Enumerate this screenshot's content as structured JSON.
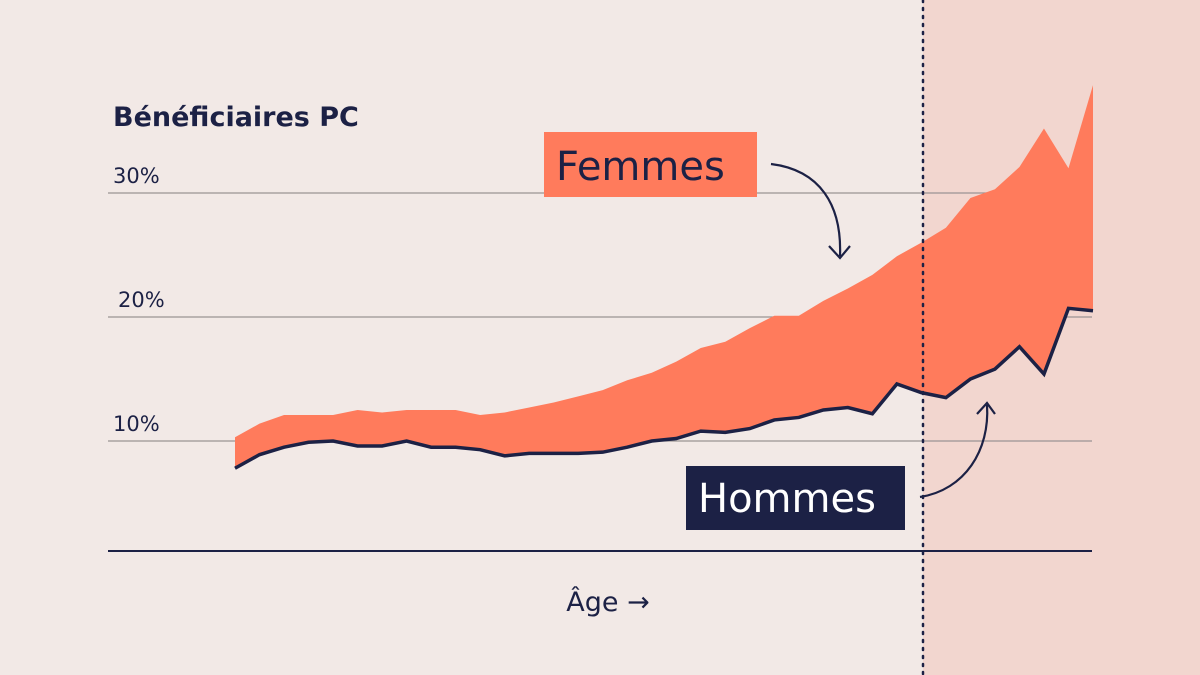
{
  "chart_data": {
    "type": "area",
    "title": "Bénéficiaires PC",
    "xlabel": "Âge →",
    "ylabel": "",
    "ylim": [
      1.1,
      40
    ],
    "yticks": [
      "10%",
      "20%",
      "30%"
    ],
    "ytick_values": [
      10,
      20,
      30
    ],
    "grid": true,
    "series": [
      {
        "name": "Femmes",
        "color": "#ff7b5c",
        "values": [
          10.3,
          11.4,
          12.1,
          12.1,
          12.1,
          12.5,
          12.3,
          12.5,
          12.5,
          12.5,
          12.1,
          12.3,
          12.7,
          13.1,
          13.6,
          14.1,
          14.9,
          15.5,
          16.4,
          17.5,
          18.0,
          19.1,
          20.1,
          20.1,
          21.3,
          22.3,
          23.4,
          24.9,
          26.0,
          27.2,
          29.6,
          30.3,
          32.1,
          35.2,
          32.0,
          38.7
        ]
      },
      {
        "name": "Hommes",
        "color": "#1c2145",
        "values": [
          7.8,
          8.9,
          9.5,
          9.9,
          10.0,
          9.6,
          9.6,
          10.0,
          9.5,
          9.5,
          9.3,
          8.8,
          9.0,
          9.0,
          9.0,
          9.1,
          9.5,
          10.0,
          10.2,
          10.8,
          10.7,
          11.0,
          11.7,
          11.9,
          12.5,
          12.7,
          12.2,
          14.6,
          13.9,
          13.5,
          15.0,
          15.8,
          17.6,
          15.4,
          20.7,
          20.5
        ]
      }
    ],
    "colors": {
      "background": "#f2e9e6",
      "highlight_region": "#f2d6cf",
      "femmes": "#ff7b5c",
      "hommes": "#1c2145",
      "hommes_label_text": "#ffffff"
    }
  }
}
